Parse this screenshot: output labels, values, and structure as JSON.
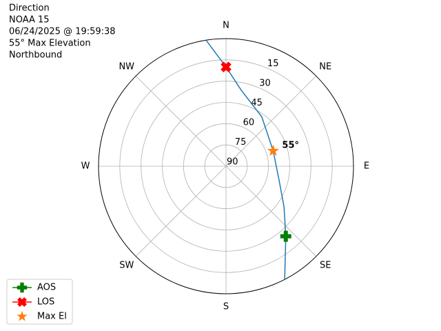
{
  "chart_data": {
    "type": "polar",
    "title": [
      "Direction",
      "NOAA 15",
      "06/24/2025 @ 19:59:38",
      "55° Max Elevation",
      "Northbound"
    ],
    "direction": "clockwise",
    "zero_location": "N",
    "ylim": [
      90,
      0
    ],
    "yticks": [
      15,
      30,
      45,
      60,
      75,
      90
    ],
    "grid": true,
    "xticks": [
      {
        "value": 0,
        "label": "N"
      },
      {
        "value": 45,
        "label": "NE"
      },
      {
        "value": 90,
        "label": "E"
      },
      {
        "value": 135,
        "label": "SE"
      },
      {
        "value": 180,
        "label": "S"
      },
      {
        "value": 225,
        "label": "SW"
      },
      {
        "value": 270,
        "label": "W"
      },
      {
        "value": 315,
        "label": "NW"
      }
    ],
    "track": {
      "color": "#1f77b4",
      "azimuth": [
        152.6,
        139.5,
        125,
        104,
        72,
        36,
        11,
        0,
        351
      ],
      "elevation": [
        0,
        25,
        40,
        51.5,
        55,
        47,
        35,
        20,
        0
      ]
    },
    "series": [
      {
        "name": "AOS",
        "color": "green",
        "marker": "plus",
        "azimuth": [
          139.5
        ],
        "elevation": [
          25
        ]
      },
      {
        "name": "LOS",
        "color": "red",
        "marker": "x",
        "azimuth": [
          0
        ],
        "elevation": [
          20
        ]
      },
      {
        "name": "Max El",
        "color": "#ff7f0e",
        "marker": "star",
        "azimuth": [
          72
        ],
        "elevation": [
          55
        ],
        "value_labels": [
          "55°"
        ]
      }
    ],
    "legend": "lower left"
  }
}
